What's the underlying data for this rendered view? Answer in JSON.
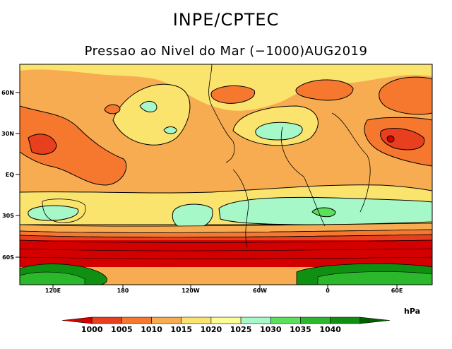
{
  "header": {
    "org": "INPE/CPTEC",
    "map_title": "Pressao ao Nivel do Mar (−1000)AUG2019"
  },
  "axes": {
    "lat_labels": [
      "60N",
      "30N",
      "EQ",
      "30S",
      "60S"
    ],
    "lon_labels": [
      "120E",
      "180",
      "120W",
      "60W",
      "0",
      "60E"
    ]
  },
  "colorbar": {
    "unit": "hPa",
    "levels": [
      "1000",
      "1005",
      "1010",
      "1015",
      "1020",
      "1025",
      "1030",
      "1035",
      "1040"
    ],
    "colors": [
      "#d40000",
      "#e8401e",
      "#f5782e",
      "#f8ac52",
      "#fbe46e",
      "#fdfd96",
      "#a6f8c8",
      "#5ae05a",
      "#2cb82c",
      "#109010",
      "#006000"
    ]
  }
}
